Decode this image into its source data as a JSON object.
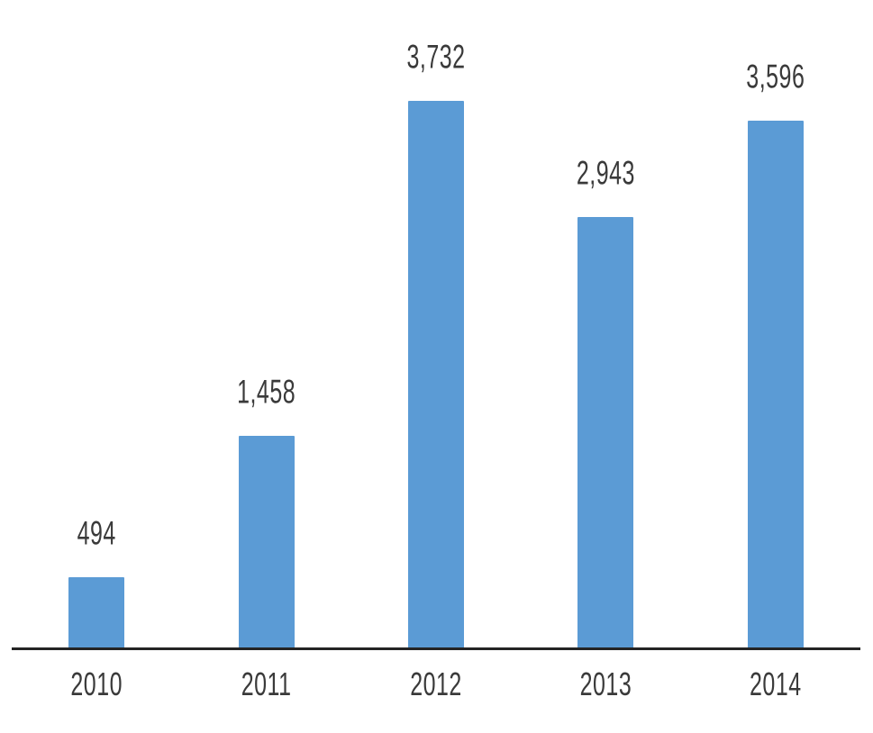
{
  "chart_data": {
    "type": "bar",
    "categories": [
      "2010",
      "2011",
      "2012",
      "2013",
      "2014"
    ],
    "values": [
      494,
      1458,
      3732,
      2943,
      3596
    ],
    "data_labels": [
      "494",
      "1,458",
      "3,732",
      "2,943",
      "3,596"
    ],
    "title": "",
    "xlabel": "",
    "ylabel": "",
    "ylim": [
      0,
      3732
    ],
    "grid": false,
    "legend": "none",
    "bar_color": "#5b9bd5",
    "axis_line_color": "#242424",
    "label_color": "#3a3a3a"
  }
}
